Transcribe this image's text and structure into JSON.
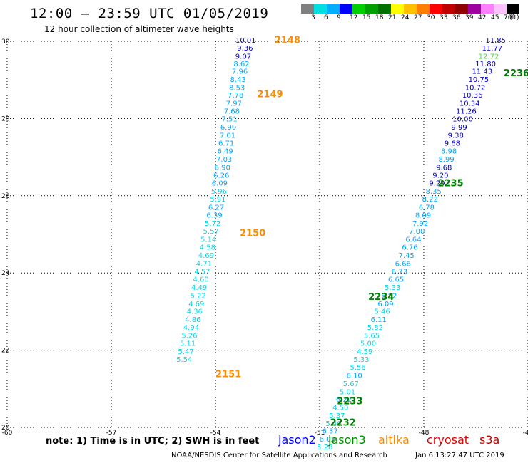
{
  "header": {
    "title": "12:00 – 23:59 UTC 01/05/2019",
    "subtitle": "12 hour collection of altimeter wave heights"
  },
  "legend": {
    "colors": [
      "#808080",
      "#00e0e0",
      "#00b0ff",
      "#0000ff",
      "#00d000",
      "#00a000",
      "#007000",
      "#ffff00",
      "#ffc000",
      "#ff8000",
      "#ff0000",
      "#c00000",
      "#900000",
      "#a000a0",
      "#ff80ff",
      "#ffc0ff",
      "#000000"
    ],
    "ticks": [
      "3",
      "6",
      "9",
      "12",
      "15",
      "18",
      "21",
      "24",
      "27",
      "30",
      "33",
      "36",
      "39",
      "42",
      "45",
      "70"
    ],
    "unit": "(ft)"
  },
  "footer": {
    "note": "note:  1) Time is in UTC;  2) SWH is in feet",
    "satellites": [
      {
        "name": "jason2",
        "color": "#0000ff"
      },
      {
        "name": "jason3",
        "color": "#009000"
      },
      {
        "name": "altika",
        "color": "#ff8c00"
      },
      {
        "name": "cryosat",
        "color": "#e00000"
      },
      {
        "name": "s3a",
        "color": "#c00000"
      }
    ],
    "credit": "NOAA/NESDIS Center for Satellite Applications and Research",
    "timestamp": "Jan  6 13:27:47 UTC 2019"
  },
  "chart_data": {
    "type": "scatter",
    "title": "12:00 – 23:59 UTC 01/05/2019",
    "subtitle": "12 hour collection of altimeter wave heights",
    "xlim": [
      -60,
      -45
    ],
    "ylim": [
      20,
      30
    ],
    "x_ticks": [
      -60,
      -57,
      -54,
      -51,
      -48,
      -45
    ],
    "y_ticks": [
      20,
      22,
      24,
      26,
      28,
      30
    ],
    "grid": true,
    "units": "ft",
    "passes": [
      {
        "label": "2148",
        "lon": -52.3,
        "lat": 29.95,
        "color": "#ff8c00"
      },
      {
        "label": "2149",
        "lon": -52.8,
        "lat": 28.55,
        "color": "#ff8c00"
      },
      {
        "label": "2150",
        "lon": -53.3,
        "lat": 24.95,
        "color": "#ff8c00"
      },
      {
        "label": "2151",
        "lon": -54.0,
        "lat": 21.3,
        "color": "#ff8c00"
      },
      {
        "label": "2236",
        "lon": -45.7,
        "lat": 29.1,
        "color": "#008000"
      },
      {
        "label": "2235",
        "lon": -47.6,
        "lat": 26.25,
        "color": "#008000"
      },
      {
        "label": "2234",
        "lon": -49.6,
        "lat": 23.3,
        "color": "#008000"
      },
      {
        "label": "2233",
        "lon": -50.5,
        "lat": 20.6,
        "color": "#008000"
      },
      {
        "label": "2232",
        "lon": -50.7,
        "lat": 20.05,
        "color": "#008000"
      }
    ],
    "series": [
      {
        "name": "2148-2151",
        "points": [
          {
            "lon": -53.13,
            "lat": 29.96,
            "v": "10.01",
            "c": "#0000c8"
          },
          {
            "lon": -53.15,
            "lat": 29.76,
            "v": "9.36",
            "c": "#0000c8"
          },
          {
            "lon": -53.2,
            "lat": 29.55,
            "v": "9.07",
            "c": "#0000c8"
          },
          {
            "lon": -53.25,
            "lat": 29.35,
            "v": "8.62",
            "c": "#00a8ff"
          },
          {
            "lon": -53.3,
            "lat": 29.16,
            "v": "7.96",
            "c": "#00a8ff"
          },
          {
            "lon": -53.35,
            "lat": 28.95,
            "v": "8.43",
            "c": "#00a8ff"
          },
          {
            "lon": -53.38,
            "lat": 28.74,
            "v": "8.53",
            "c": "#00a8ff"
          },
          {
            "lon": -53.42,
            "lat": 28.54,
            "v": "7.78",
            "c": "#00a8ff"
          },
          {
            "lon": -53.47,
            "lat": 28.33,
            "v": "7.97",
            "c": "#00a8ff"
          },
          {
            "lon": -53.53,
            "lat": 28.13,
            "v": "7.68",
            "c": "#00a8ff"
          },
          {
            "lon": -53.6,
            "lat": 27.92,
            "v": "7.51",
            "c": "#00a8ff"
          },
          {
            "lon": -53.63,
            "lat": 27.71,
            "v": "6.90",
            "c": "#00a8ff"
          },
          {
            "lon": -53.65,
            "lat": 27.5,
            "v": "7.01",
            "c": "#00a8ff"
          },
          {
            "lon": -53.69,
            "lat": 27.3,
            "v": "6.71",
            "c": "#00a8ff"
          },
          {
            "lon": -53.72,
            "lat": 27.09,
            "v": "6.49",
            "c": "#00a8ff"
          },
          {
            "lon": -53.75,
            "lat": 26.88,
            "v": "7.03",
            "c": "#00a8ff"
          },
          {
            "lon": -53.8,
            "lat": 26.67,
            "v": "6.90",
            "c": "#00a8ff"
          },
          {
            "lon": -53.83,
            "lat": 26.47,
            "v": "6.26",
            "c": "#00a8ff"
          },
          {
            "lon": -53.88,
            "lat": 26.26,
            "v": "6.09",
            "c": "#00a8ff"
          },
          {
            "lon": -53.9,
            "lat": 26.05,
            "v": "5.96",
            "c": "#00d8e8"
          },
          {
            "lon": -53.93,
            "lat": 25.85,
            "v": "5.91",
            "c": "#00d8e8"
          },
          {
            "lon": -53.98,
            "lat": 25.64,
            "v": "6.27",
            "c": "#00a8ff"
          },
          {
            "lon": -54.03,
            "lat": 25.43,
            "v": "6.39",
            "c": "#00a8ff"
          },
          {
            "lon": -54.08,
            "lat": 25.22,
            "v": "5.72",
            "c": "#00d8e8"
          },
          {
            "lon": -54.13,
            "lat": 25.02,
            "v": "5.57",
            "c": "#00d8e8"
          },
          {
            "lon": -54.2,
            "lat": 24.81,
            "v": "5.14",
            "c": "#00d8e8"
          },
          {
            "lon": -54.23,
            "lat": 24.6,
            "v": "4.58",
            "c": "#00d8e8"
          },
          {
            "lon": -54.27,
            "lat": 24.39,
            "v": "4.69",
            "c": "#00d8e8"
          },
          {
            "lon": -54.33,
            "lat": 24.18,
            "v": "4.71",
            "c": "#00d8e8"
          },
          {
            "lon": -54.38,
            "lat": 23.98,
            "v": "4.57",
            "c": "#00d8e8"
          },
          {
            "lon": -54.42,
            "lat": 23.77,
            "v": "4.60",
            "c": "#00d8e8"
          },
          {
            "lon": -54.47,
            "lat": 23.56,
            "v": "4.49",
            "c": "#00d8e8"
          },
          {
            "lon": -54.5,
            "lat": 23.35,
            "v": "5.22",
            "c": "#00d8e8"
          },
          {
            "lon": -54.55,
            "lat": 23.14,
            "v": "4.69",
            "c": "#00d8e8"
          },
          {
            "lon": -54.6,
            "lat": 22.94,
            "v": "4.36",
            "c": "#00d8e8"
          },
          {
            "lon": -54.65,
            "lat": 22.73,
            "v": "4.86",
            "c": "#00d8e8"
          },
          {
            "lon": -54.7,
            "lat": 22.53,
            "v": "4.94",
            "c": "#00d8e8"
          },
          {
            "lon": -54.75,
            "lat": 22.32,
            "v": "5.26",
            "c": "#00d8e8"
          },
          {
            "lon": -54.8,
            "lat": 22.11,
            "v": "5.11",
            "c": "#00d8e8"
          },
          {
            "lon": -54.85,
            "lat": 21.9,
            "v": "5.47",
            "c": "#00d8e8"
          },
          {
            "lon": -54.9,
            "lat": 21.7,
            "v": "5.54",
            "c": "#00d8e8"
          }
        ]
      },
      {
        "name": "2232-2236",
        "points": [
          {
            "lon": -45.93,
            "lat": 29.96,
            "v": "11.85",
            "c": "#0000c8"
          },
          {
            "lon": -46.03,
            "lat": 29.76,
            "v": "11.77",
            "c": "#0000c8"
          },
          {
            "lon": -46.13,
            "lat": 29.55,
            "v": "12.72",
            "c": "#50d850"
          },
          {
            "lon": -46.22,
            "lat": 29.35,
            "v": "11.80",
            "c": "#0000c8"
          },
          {
            "lon": -46.32,
            "lat": 29.16,
            "v": "11.43",
            "c": "#0000c8"
          },
          {
            "lon": -46.42,
            "lat": 28.95,
            "v": "10.75",
            "c": "#0000c8"
          },
          {
            "lon": -46.52,
            "lat": 28.74,
            "v": "10.72",
            "c": "#0000c8"
          },
          {
            "lon": -46.6,
            "lat": 28.54,
            "v": "10.36",
            "c": "#0000c8"
          },
          {
            "lon": -46.68,
            "lat": 28.33,
            "v": "10.34",
            "c": "#0000c8"
          },
          {
            "lon": -46.78,
            "lat": 28.13,
            "v": "11.26",
            "c": "#0000c8"
          },
          {
            "lon": -46.88,
            "lat": 27.92,
            "v": "10.00",
            "c": "#0000c8"
          },
          {
            "lon": -46.98,
            "lat": 27.71,
            "v": "9.99",
            "c": "#0000c8"
          },
          {
            "lon": -47.08,
            "lat": 27.5,
            "v": "9.38",
            "c": "#0000c8"
          },
          {
            "lon": -47.18,
            "lat": 27.3,
            "v": "9.68",
            "c": "#0000c8"
          },
          {
            "lon": -47.28,
            "lat": 27.09,
            "v": "8.98",
            "c": "#00a8ff"
          },
          {
            "lon": -47.35,
            "lat": 26.88,
            "v": "8.99",
            "c": "#00a8ff"
          },
          {
            "lon": -47.42,
            "lat": 26.67,
            "v": "9.68",
            "c": "#0000c8"
          },
          {
            "lon": -47.52,
            "lat": 26.47,
            "v": "9.20",
            "c": "#0000c8"
          },
          {
            "lon": -47.62,
            "lat": 26.26,
            "v": "9.29",
            "c": "#0000c8"
          },
          {
            "lon": -47.72,
            "lat": 26.05,
            "v": "8.35",
            "c": "#00a8ff"
          },
          {
            "lon": -47.82,
            "lat": 25.85,
            "v": "8.22",
            "c": "#00a8ff"
          },
          {
            "lon": -47.92,
            "lat": 25.64,
            "v": "6.78",
            "c": "#00a8ff"
          },
          {
            "lon": -48.02,
            "lat": 25.43,
            "v": "8.09",
            "c": "#00a8ff"
          },
          {
            "lon": -48.1,
            "lat": 25.22,
            "v": "7.92",
            "c": "#00a8ff"
          },
          {
            "lon": -48.2,
            "lat": 25.02,
            "v": "7.00",
            "c": "#00a8ff"
          },
          {
            "lon": -48.3,
            "lat": 24.81,
            "v": "6.64",
            "c": "#00a8ff"
          },
          {
            "lon": -48.4,
            "lat": 24.6,
            "v": "6.76",
            "c": "#00a8ff"
          },
          {
            "lon": -48.5,
            "lat": 24.39,
            "v": "7.45",
            "c": "#00a8ff"
          },
          {
            "lon": -48.6,
            "lat": 24.18,
            "v": "6.66",
            "c": "#00a8ff"
          },
          {
            "lon": -48.7,
            "lat": 23.98,
            "v": "6.73",
            "c": "#00a8ff"
          },
          {
            "lon": -48.8,
            "lat": 23.77,
            "v": "6.65",
            "c": "#00a8ff"
          },
          {
            "lon": -48.9,
            "lat": 23.56,
            "v": "5.33",
            "c": "#00d8e8"
          },
          {
            "lon": -49.0,
            "lat": 23.35,
            "v": "6.82",
            "c": "#00a8ff"
          },
          {
            "lon": -49.1,
            "lat": 23.14,
            "v": "6.09",
            "c": "#00a8ff"
          },
          {
            "lon": -49.2,
            "lat": 22.94,
            "v": "5.46",
            "c": "#00d8e8"
          },
          {
            "lon": -49.3,
            "lat": 22.73,
            "v": "6.11",
            "c": "#00a8ff"
          },
          {
            "lon": -49.4,
            "lat": 22.53,
            "v": "5.82",
            "c": "#00d8e8"
          },
          {
            "lon": -49.5,
            "lat": 22.32,
            "v": "5.65",
            "c": "#00d8e8"
          },
          {
            "lon": -49.6,
            "lat": 22.11,
            "v": "5.00",
            "c": "#00d8e8"
          },
          {
            "lon": -49.7,
            "lat": 21.9,
            "v": "4.59",
            "c": "#00d8e8"
          },
          {
            "lon": -49.8,
            "lat": 21.7,
            "v": "5.33",
            "c": "#00d8e8"
          },
          {
            "lon": -49.9,
            "lat": 21.49,
            "v": "5.56",
            "c": "#00d8e8"
          },
          {
            "lon": -50.0,
            "lat": 21.28,
            "v": "6.10",
            "c": "#00a8ff"
          },
          {
            "lon": -50.1,
            "lat": 21.07,
            "v": "5.67",
            "c": "#00d8e8"
          },
          {
            "lon": -50.2,
            "lat": 20.86,
            "v": "5.01",
            "c": "#00d8e8"
          },
          {
            "lon": -50.3,
            "lat": 20.66,
            "v": "6.22",
            "c": "#00a8ff"
          },
          {
            "lon": -50.4,
            "lat": 20.45,
            "v": "4.50",
            "c": "#00d8e8"
          },
          {
            "lon": -50.5,
            "lat": 20.24,
            "v": "5.37",
            "c": "#00d8e8"
          },
          {
            "lon": -50.6,
            "lat": 20.04,
            "v": "5.40",
            "c": "#00d8e8"
          },
          {
            "lon": -50.7,
            "lat": 19.84,
            "v": "6.37",
            "c": "#00a8ff"
          },
          {
            "lon": -50.78,
            "lat": 19.63,
            "v": "6.02",
            "c": "#00a8ff"
          },
          {
            "lon": -50.85,
            "lat": 19.43,
            "v": "5.28",
            "c": "#00d8e8"
          }
        ]
      }
    ]
  }
}
